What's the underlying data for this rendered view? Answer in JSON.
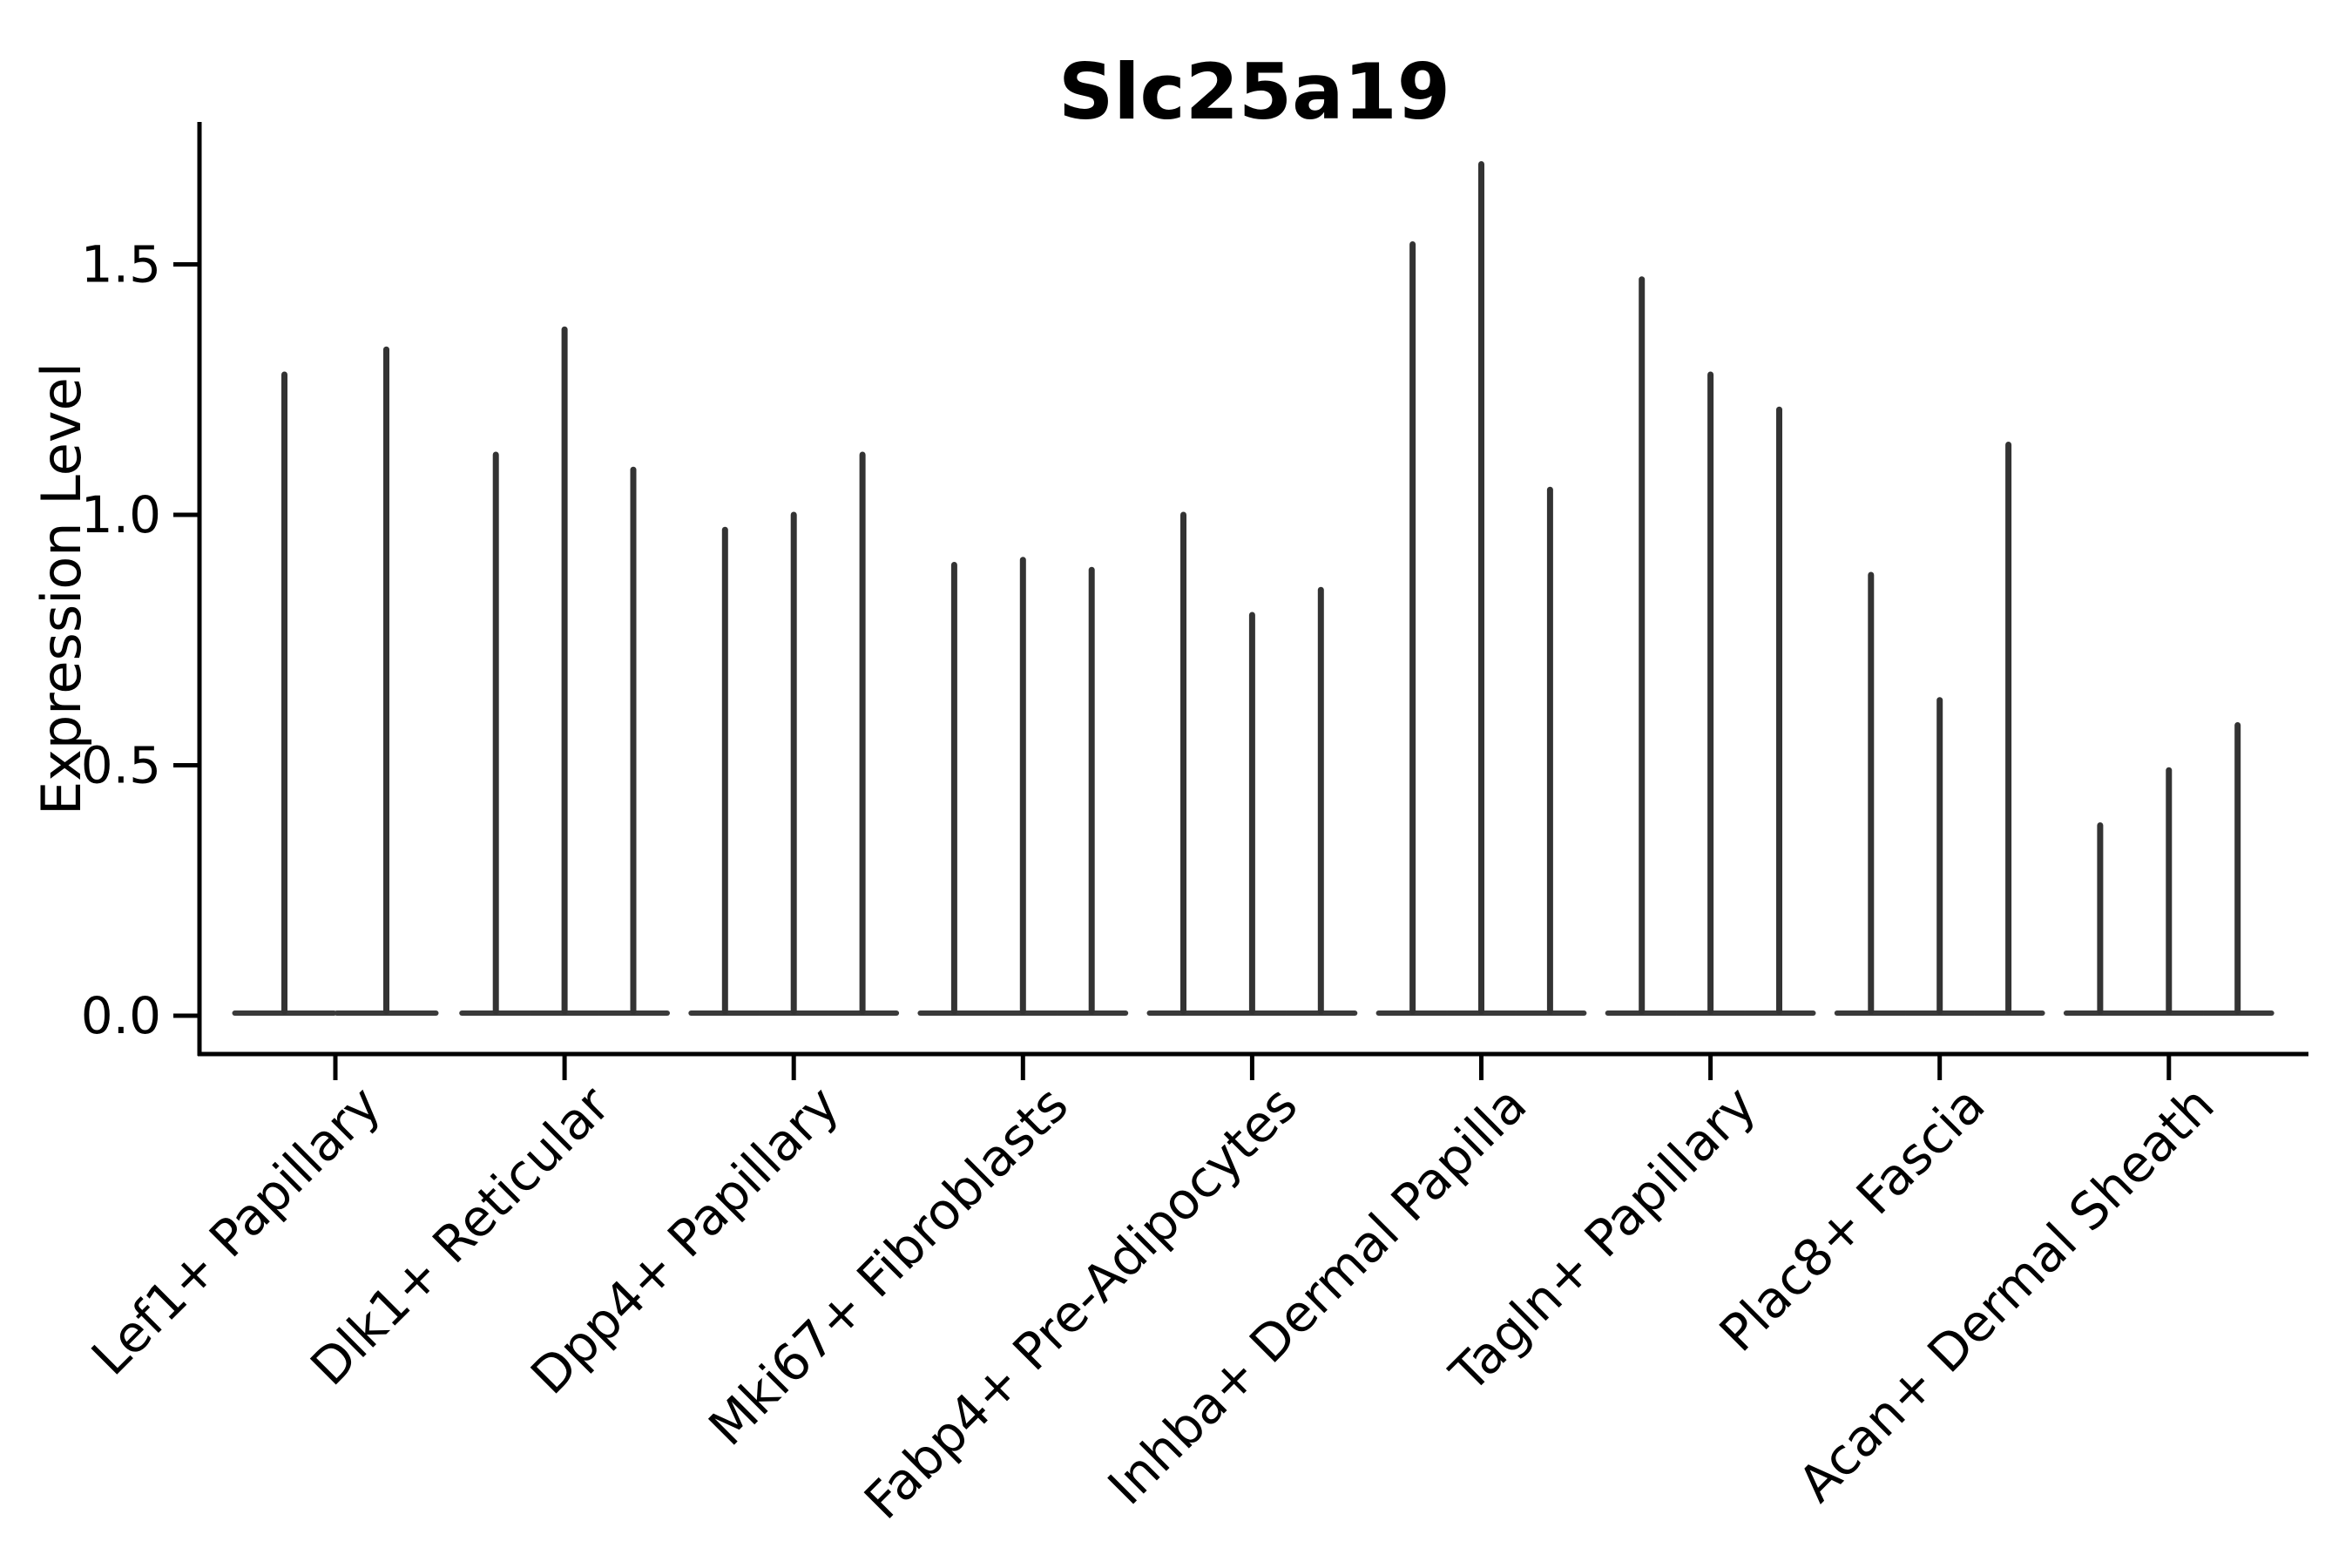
{
  "chart_data": {
    "type": "violin",
    "title": "Slc25a19",
    "xlabel": "",
    "ylabel": "Expression Level",
    "categories": [
      "Lef1+ Papillary",
      "Dlk1+ Reticular",
      "Dpp4+ Papillary",
      "Mki67+ Fibroblasts",
      "Fabp4+ Pre-Adipocytes",
      "Inhba+ Dermal Papilla",
      "Tagln+ Papillary",
      "Plac8+ Fascia",
      "Acan+ Dermal Sheath"
    ],
    "violin_max_values": [
      [
        1.28,
        1.33
      ],
      [
        1.12,
        1.37,
        1.09
      ],
      [
        0.97,
        1.0,
        1.12
      ],
      [
        0.9,
        0.91,
        0.89
      ],
      [
        1.0,
        0.8,
        0.85
      ],
      [
        1.54,
        1.7,
        1.05
      ],
      [
        1.47,
        1.28,
        1.21
      ],
      [
        0.88,
        0.63,
        1.14
      ],
      [
        0.38,
        0.49,
        0.58
      ]
    ],
    "yticks": [
      0.0,
      0.5,
      1.0,
      1.5
    ],
    "ytick_labels": [
      "0.0",
      "0.5",
      "1.0",
      "1.5"
    ],
    "ylim": [
      -0.08,
      1.78
    ],
    "grid": false,
    "legend": false,
    "violin_style": "needle-thin collapsed violins sitting on a flat base at y=0, grouped per category (2 violins in first category, 3 in all others)",
    "colors": {
      "violin": "#333333",
      "violin_base": "#3a3a3a",
      "spine": "#000000",
      "text": "#000000",
      "background": "#ffffff"
    }
  }
}
